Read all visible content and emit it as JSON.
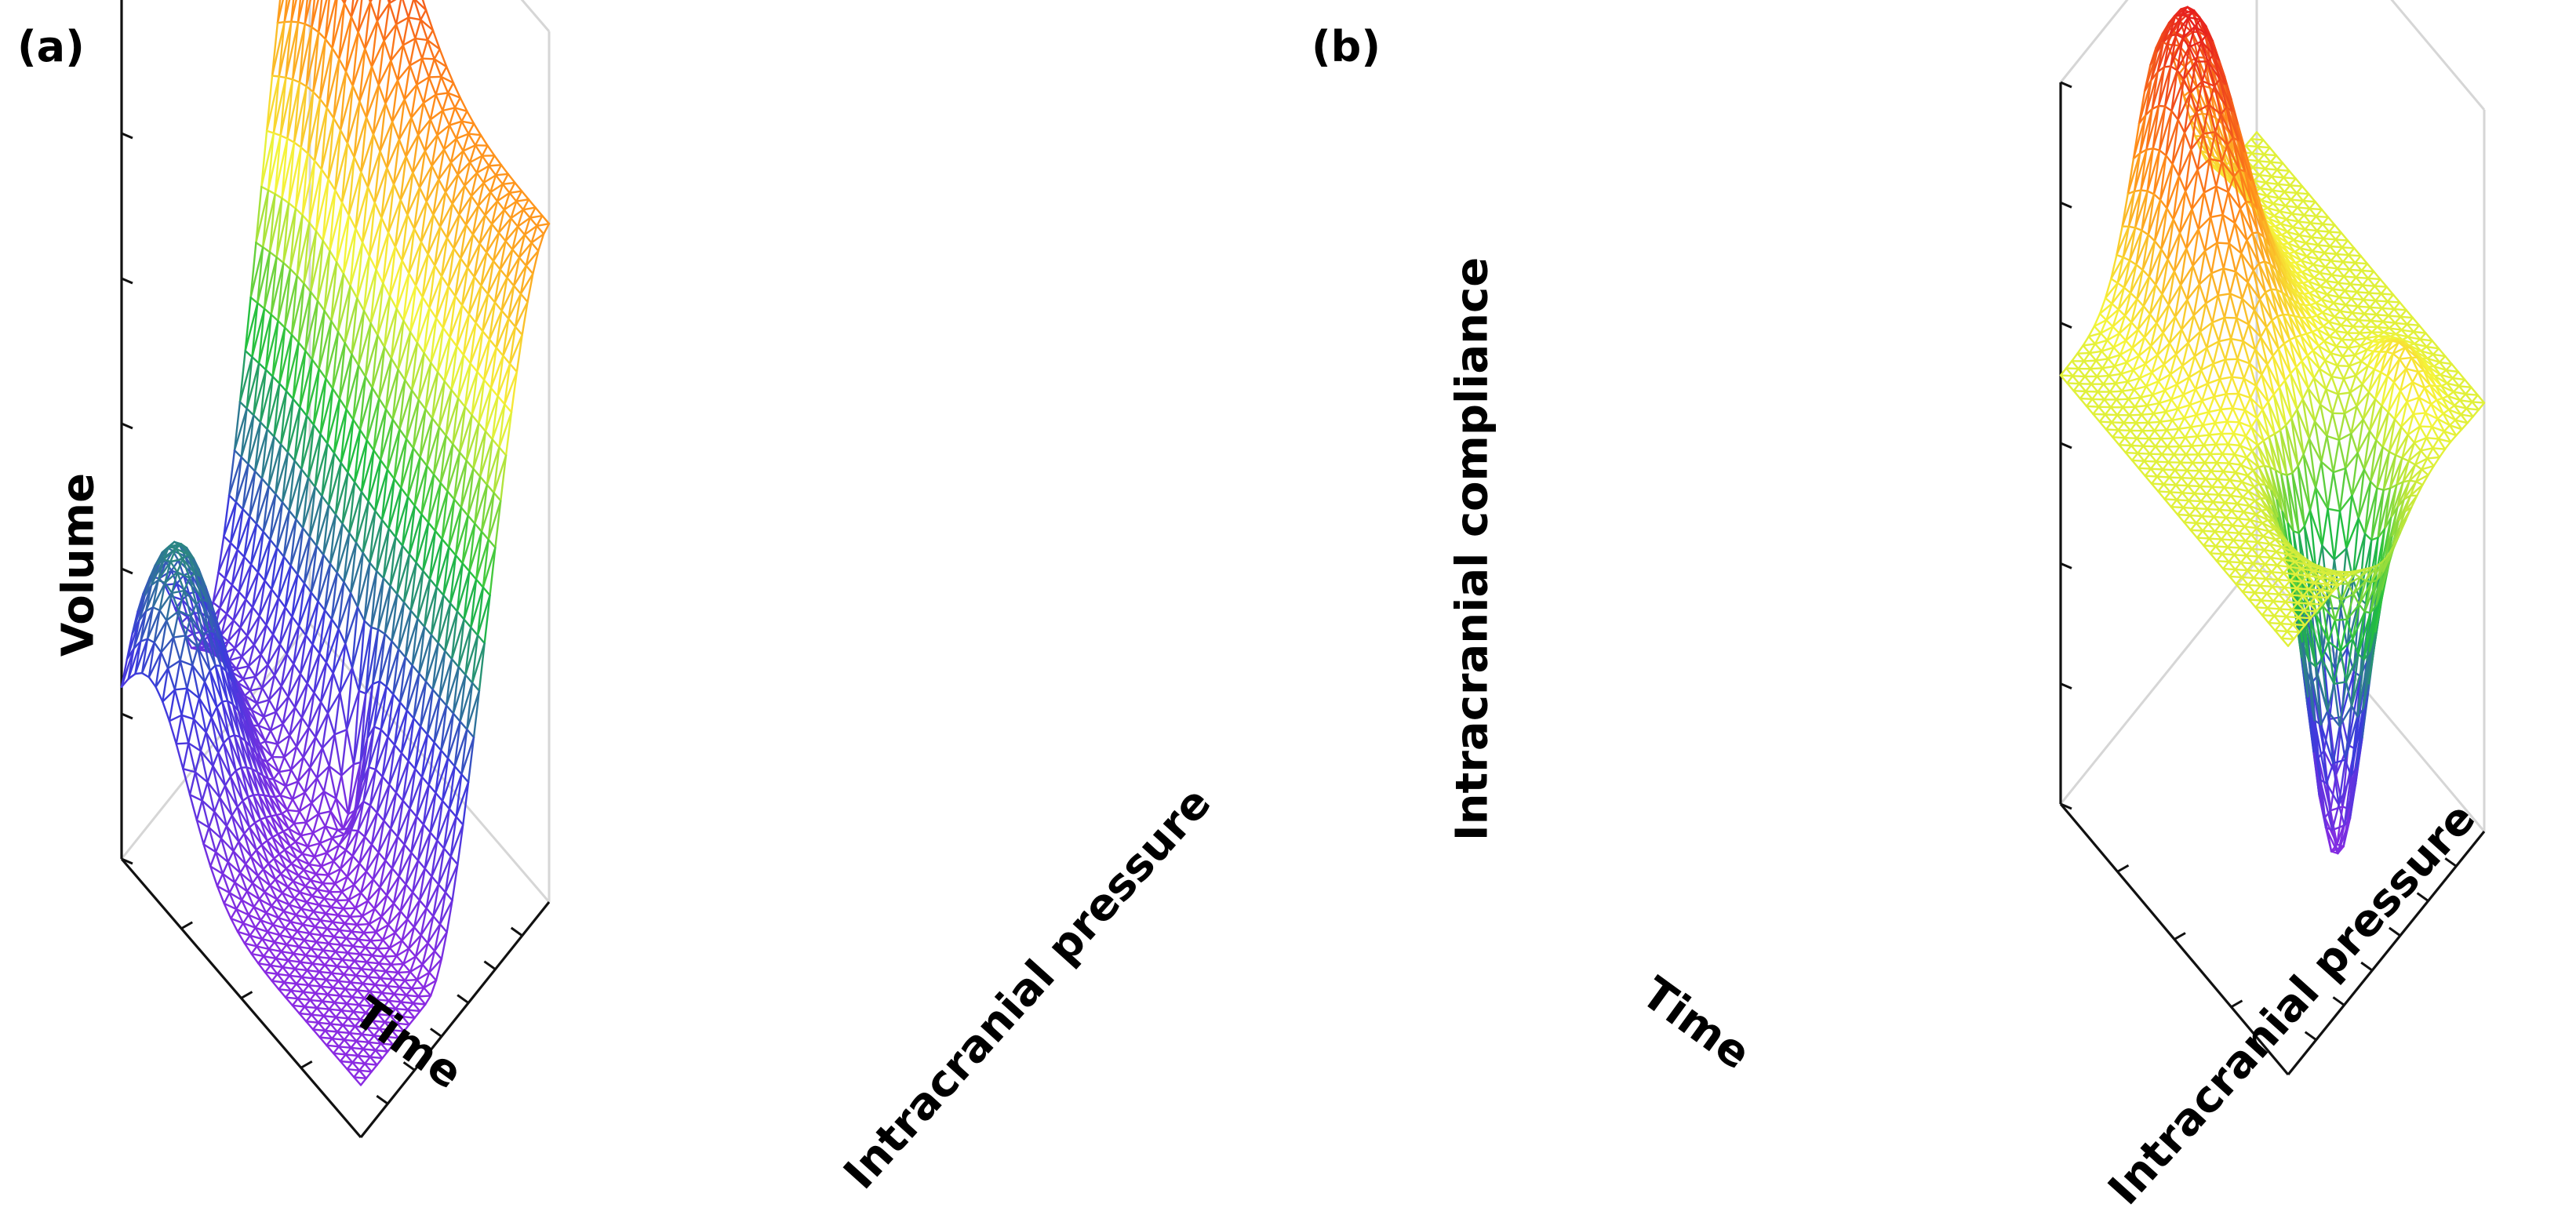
{
  "figure": {
    "panels": [
      {
        "id": "a",
        "label": "(a)",
        "zlabel": "Volume",
        "xlabel": "Time",
        "ylabel": "Intracranial pressure"
      },
      {
        "id": "b",
        "label": "(b)",
        "zlabel": "Intracranial compliance",
        "xlabel": "Time",
        "ylabel": "Intracranial pressure"
      }
    ]
  },
  "chart_data": [
    {
      "type": "surface",
      "panel": "(a)",
      "style": "wireframe",
      "colormap": "rainbow",
      "colormap_stops": [
        "#8a2be2",
        "#3b3bdc",
        "#1fbf3f",
        "#f5f53a",
        "#ff8c1a",
        "#e61e1e"
      ],
      "xlabel": "Time",
      "ylabel": "Intracranial pressure",
      "zlabel": "Volume",
      "x_range": [
        0,
        1
      ],
      "y_range": [
        0,
        1
      ],
      "z_range": [
        0,
        1
      ],
      "grid_points": [
        36,
        36
      ],
      "tick_counts": {
        "x": 4,
        "y": 7,
        "z": 7
      },
      "ticklabels_shown": false,
      "shape": [
        {
          "kind": "sigmoid_ramp",
          "axis": "y",
          "start": 0.35,
          "end": 1.0,
          "amount": 0.78
        },
        {
          "kind": "peak",
          "x": 0.2,
          "y": 0.98,
          "width_x": 0.3,
          "width_y": 0.22,
          "amount": 0.22
        },
        {
          "kind": "plateau",
          "x": 0.12,
          "y": 0.15,
          "width_x": 0.22,
          "width_y": 0.22,
          "amount": 0.32
        },
        {
          "kind": "dip",
          "x": 0.55,
          "y": 0.52,
          "width_x": 0.05,
          "width_y": 0.06,
          "amount": 0.1
        }
      ]
    },
    {
      "type": "surface",
      "panel": "(b)",
      "style": "wireframe",
      "colormap": "rainbow",
      "colormap_stops": [
        "#8a2be2",
        "#3b3bdc",
        "#1fbf3f",
        "#f5f53a",
        "#ff8c1a",
        "#e61e1e"
      ],
      "xlabel": "Time",
      "ylabel": "Intracranial pressure",
      "zlabel": "Intracranial compliance",
      "x_range": [
        0,
        1
      ],
      "y_range": [
        0,
        1
      ],
      "z_range": [
        0,
        1
      ],
      "grid_points": [
        36,
        36
      ],
      "tick_counts": {
        "x": 4,
        "y": 7,
        "z": 7
      },
      "ticklabels_shown": false,
      "shape": [
        {
          "kind": "baseline",
          "amount": 0.45
        },
        {
          "kind": "peak",
          "x": 0.15,
          "y": 0.5,
          "width_x": 0.28,
          "width_y": 0.18,
          "amount": 0.5
        },
        {
          "kind": "trough",
          "x": 0.78,
          "y": 0.5,
          "width_x": 0.14,
          "width_y": 0.14,
          "amount": 0.7
        },
        {
          "kind": "ridge",
          "x": 0.8,
          "y": 0.82,
          "width_x": 0.12,
          "width_y": 0.08,
          "amount": 0.08
        }
      ]
    }
  ]
}
